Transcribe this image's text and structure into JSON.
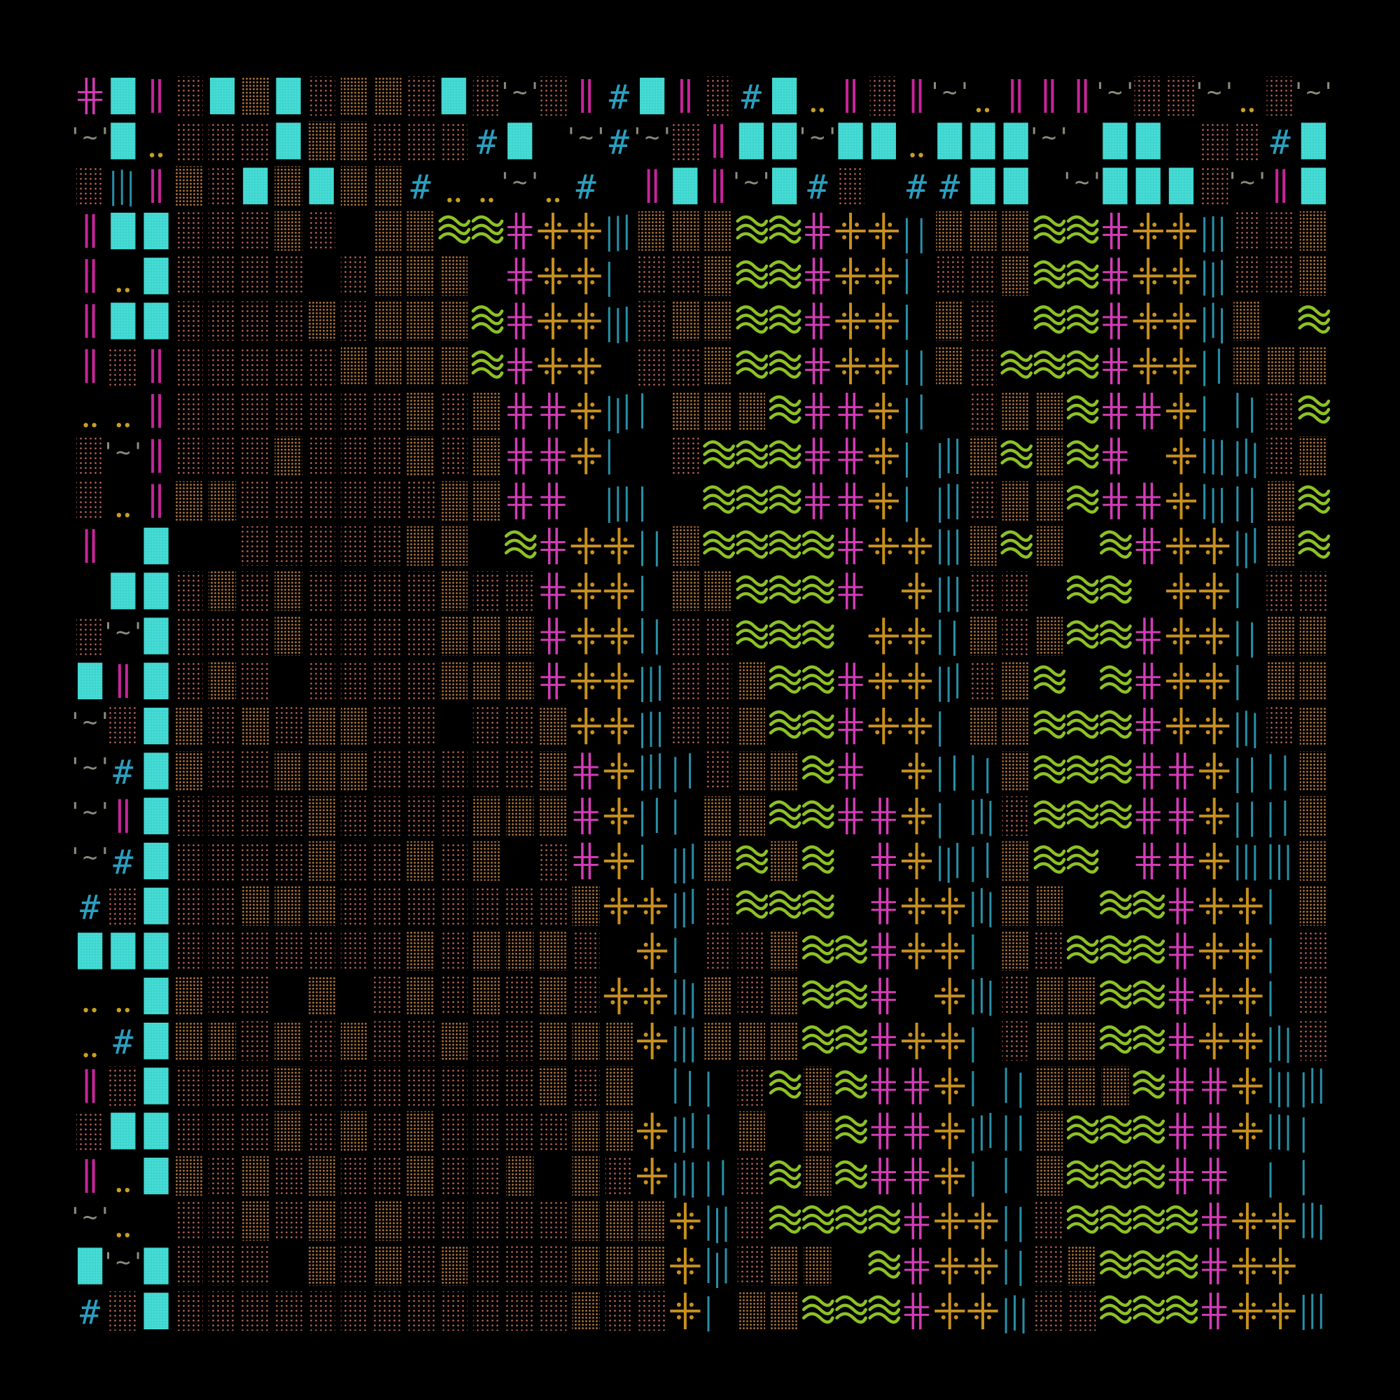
{
  "artwork": {
    "background_color": "#000000",
    "grid_columns": 38,
    "grid_rows": 28,
    "palette": {
      "cyan_block": "#3FD6D0",
      "cyan_hash": "#2A9FC0",
      "magenta": "#C8249A",
      "magenta_bright": "#D43CB8",
      "olive_wave": "#8DC224",
      "gold_cross": "#C8901E",
      "tan_dots": "#B57838",
      "salmon_dots": "#C46A5A",
      "gray_tilde": "#8C8C7C",
      "teal_bars": "#2890A8"
    },
    "glyph_kinds": [
      "cyan-block",
      "hash",
      "double-bar",
      "double-dot",
      "tilde",
      "wave",
      "double-cross",
      "gold-cross",
      "thin-bars",
      "tan-dots",
      "salmon-dots"
    ],
    "layout_pattern": "left band of salmon/tan dot columns, diagonal wedge of olive waves, magenta double-crosses and gold crosses, teal bar clusters, cyan blocks scattered in upper rows"
  }
}
